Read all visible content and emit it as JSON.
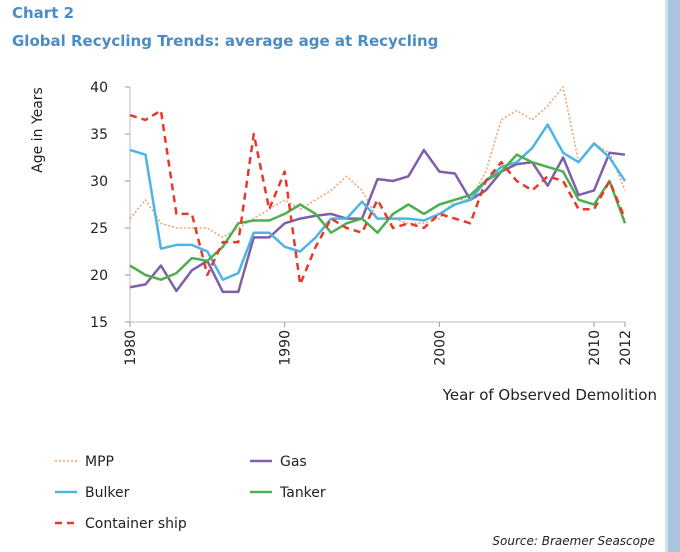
{
  "chart_data": {
    "type": "line",
    "title": "Chart 2",
    "subtitle": "Global Recycling Trends: average age at Recycling",
    "y_label": "Age in Years",
    "x_label": "Year of Observed Demolition",
    "source": "Source: Braemer Seascope",
    "x": [
      1980,
      1981,
      1982,
      1983,
      1984,
      1985,
      1986,
      1987,
      1988,
      1989,
      1990,
      1991,
      1992,
      1993,
      1994,
      1995,
      1996,
      1997,
      1998,
      1999,
      2000,
      2001,
      2002,
      2003,
      2004,
      2005,
      2006,
      2007,
      2008,
      2009,
      2010,
      2011,
      2012
    ],
    "xlim": [
      1980,
      2012
    ],
    "xticks": [
      1980,
      1990,
      2000,
      2010,
      2012
    ],
    "ylim": [
      15,
      40
    ],
    "yticks": [
      15,
      20,
      25,
      30,
      35,
      40
    ],
    "grid": false,
    "series": [
      {
        "name": "MPP",
        "color": "#f0a070",
        "style": "dotted",
        "values": [
          26,
          28,
          25.5,
          25,
          25,
          25,
          24,
          25,
          26,
          27,
          28,
          27,
          28,
          29,
          30.5,
          29,
          26,
          26,
          25.5,
          25.5,
          26,
          28,
          28,
          31,
          36.5,
          37.5,
          36.5,
          38,
          40,
          32,
          34,
          33,
          29
        ]
      },
      {
        "name": "Gas",
        "color": "#7f5fa8",
        "style": "solid",
        "values": [
          18.7,
          19,
          21,
          18.3,
          20.5,
          21.5,
          18.2,
          18.2,
          24,
          24,
          25.5,
          26,
          26.3,
          26.5,
          26,
          26,
          30.2,
          30,
          30.5,
          33.3,
          31,
          30.8,
          28,
          29,
          31,
          31.8,
          32,
          29.5,
          32.5,
          28.5,
          29,
          33,
          32.8
        ]
      },
      {
        "name": "Bulker",
        "color": "#4cb4e6",
        "style": "solid",
        "values": [
          33.3,
          32.8,
          22.8,
          23.2,
          23.2,
          22.5,
          19.5,
          20.2,
          24.5,
          24.5,
          23,
          22.5,
          24,
          26,
          26,
          27.8,
          26,
          26,
          26,
          25.8,
          26.5,
          27.5,
          28,
          30,
          31.5,
          32,
          33.5,
          36,
          33,
          32,
          34,
          32.5,
          30
        ]
      },
      {
        "name": "Tanker",
        "color": "#4cb050",
        "style": "solid",
        "values": [
          21,
          20,
          19.5,
          20.2,
          21.8,
          21.5,
          23,
          25.5,
          25.8,
          25.8,
          26.5,
          27.5,
          26.5,
          24.5,
          25.5,
          26,
          24.5,
          26.5,
          27.5,
          26.5,
          27.5,
          28,
          28.5,
          30,
          31,
          32.8,
          32,
          31.5,
          31,
          28,
          27.5,
          30,
          25.5
        ]
      },
      {
        "name": "Container ship",
        "color": "#e8382a",
        "style": "dashed",
        "values": [
          37,
          36.5,
          37.5,
          26.5,
          26.5,
          20,
          23.5,
          23.5,
          35,
          27,
          31,
          19,
          23,
          26,
          25,
          24.5,
          28,
          25,
          25.5,
          25,
          26.5,
          26,
          25.5,
          30,
          32,
          30,
          29,
          30.5,
          30,
          27,
          27,
          30,
          26
        ]
      }
    ]
  }
}
